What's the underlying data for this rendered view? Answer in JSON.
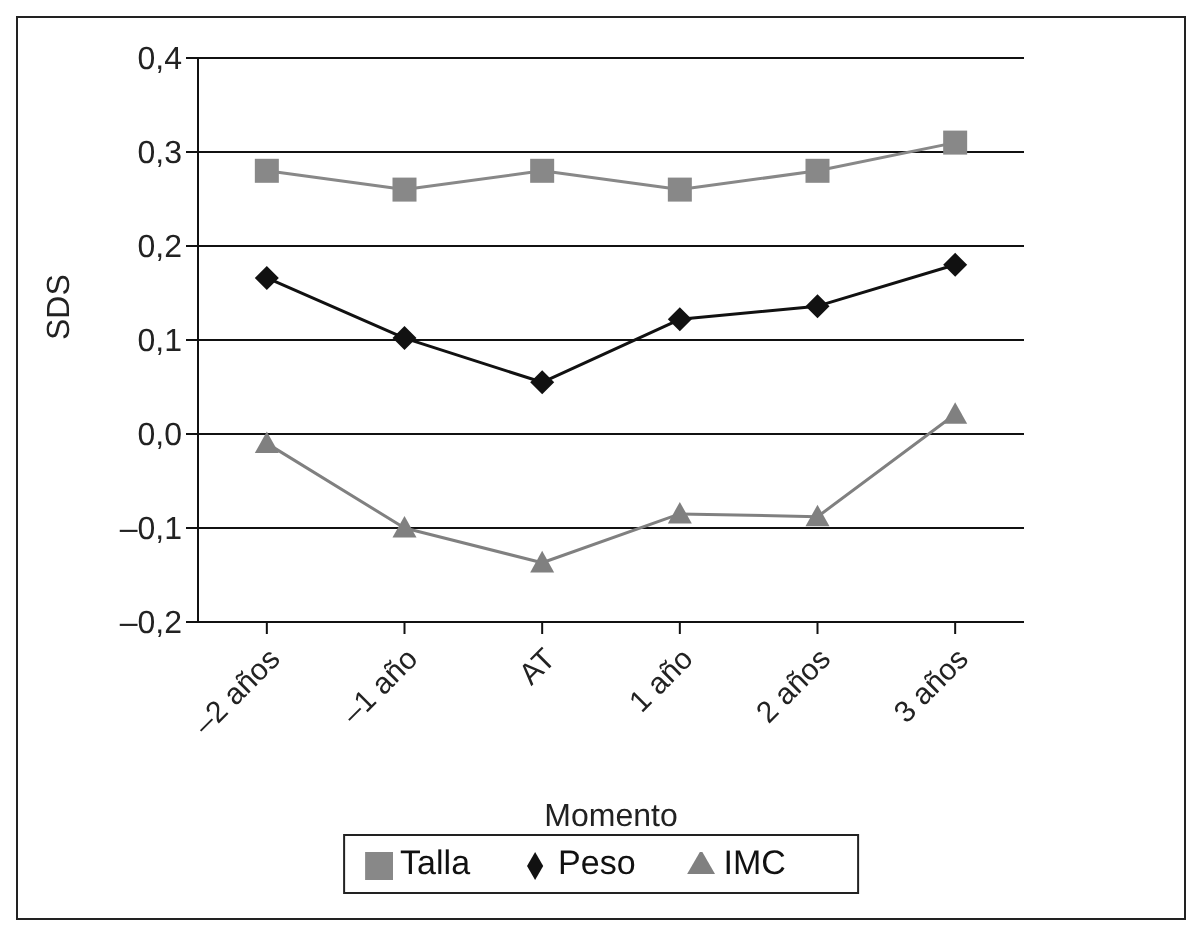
{
  "chart_data": {
    "type": "line",
    "xlabel": "Momento",
    "ylabel": "SDS",
    "categories": [
      "–2 años",
      "–1 año",
      "AT",
      "1 año",
      "2 años",
      "3 años"
    ],
    "series": [
      {
        "name": "Talla",
        "color": "#888888",
        "marker": "square",
        "values": [
          0.28,
          0.26,
          0.28,
          0.26,
          0.28,
          0.31
        ]
      },
      {
        "name": "Peso",
        "color": "#111111",
        "marker": "diamond",
        "values": [
          0.166,
          0.102,
          0.055,
          0.122,
          0.136,
          0.18
        ]
      },
      {
        "name": "IMC",
        "color": "#808080",
        "marker": "triangle",
        "values": [
          -0.01,
          -0.1,
          -0.137,
          -0.085,
          -0.088,
          0.021
        ]
      }
    ],
    "ylim": [
      -0.2,
      0.4
    ],
    "yticks": [
      {
        "value": -0.2,
        "label": "–0,2"
      },
      {
        "value": -0.1,
        "label": "–0,1"
      },
      {
        "value": 0,
        "label": "0,0"
      },
      {
        "value": 0.1,
        "label": "0,1"
      },
      {
        "value": 0.2,
        "label": "0,2"
      },
      {
        "value": 0.3,
        "label": "0,3"
      },
      {
        "value": 0.4,
        "label": "0,4"
      }
    ],
    "grid": "y",
    "legend": "bottom"
  }
}
